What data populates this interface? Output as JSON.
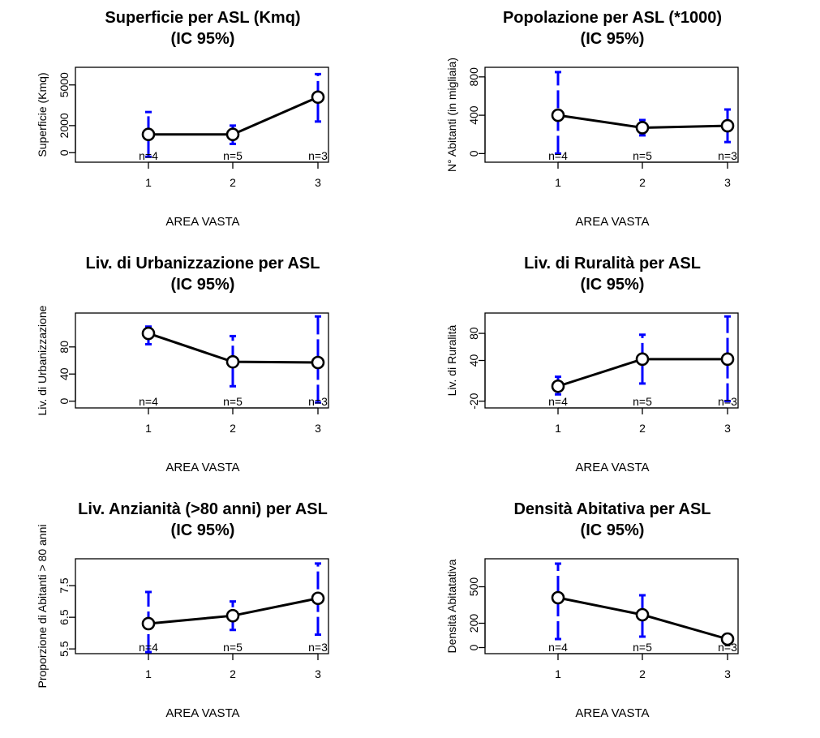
{
  "chart_data": [
    {
      "type": "line",
      "title": "Superficie per ASL (Kmq)",
      "subtitle": "(IC 95%)",
      "xlabel": "AREA VASTA",
      "ylabel": "Superficie (Kmq)",
      "categories": [
        "1",
        "2",
        "3"
      ],
      "values": [
        1350,
        1350,
        4100
      ],
      "ci_lower": [
        -300,
        650,
        2300
      ],
      "ci_upper": [
        3000,
        2000,
        5800
      ],
      "n_labels": [
        "n=4",
        "n=5",
        "n=3"
      ],
      "yticks": [
        0,
        2000,
        5000
      ],
      "ylim": [
        -700,
        6300
      ],
      "colors": {
        "line": "#000000",
        "error_bar": "#0000ff"
      }
    },
    {
      "type": "line",
      "title": "Popolazione per ASL (*1000)",
      "subtitle": "(IC 95%)",
      "xlabel": "AREA VASTA",
      "ylabel": "N° Abitanti (in migliaia)",
      "categories": [
        "1",
        "2",
        "3"
      ],
      "values": [
        400,
        270,
        290
      ],
      "ci_lower": [
        0,
        190,
        120
      ],
      "ci_upper": [
        850,
        350,
        460
      ],
      "n_labels": [
        "n=4",
        "n=5",
        "n=3"
      ],
      "yticks": [
        0,
        400,
        800
      ],
      "ylim": [
        -90,
        900
      ],
      "colors": {
        "line": "#000000",
        "error_bar": "#0000ff"
      }
    },
    {
      "type": "line",
      "title": "Liv. di Urbanizzazione per ASL",
      "subtitle": "(IC 95%)",
      "xlabel": "AREA VASTA",
      "ylabel": "Liv. di Urbanizzazione",
      "categories": [
        "1",
        "2",
        "3"
      ],
      "values": [
        100,
        58,
        57
      ],
      "ci_lower": [
        84,
        22,
        -2
      ],
      "ci_upper": [
        110,
        96,
        125
      ],
      "n_labels": [
        "n=4",
        "n=5",
        "n=3"
      ],
      "yticks": [
        0,
        40,
        80
      ],
      "ylim": [
        -10,
        130
      ],
      "colors": {
        "line": "#000000",
        "error_bar": "#0000ff"
      }
    },
    {
      "type": "line",
      "title": "Liv. di Ruralità per ASL",
      "subtitle": "(IC 95%)",
      "xlabel": "AREA VASTA",
      "ylabel": "Liv. di Ruralità",
      "categories": [
        "1",
        "2",
        "3"
      ],
      "values": [
        2,
        42,
        42
      ],
      "ci_lower": [
        -10,
        6,
        -20
      ],
      "ci_upper": [
        16,
        78,
        105
      ],
      "n_labels": [
        "n=4",
        "n=5",
        "n=3"
      ],
      "yticks": [
        -20,
        40,
        80
      ],
      "ylim": [
        -30,
        110
      ],
      "colors": {
        "line": "#000000",
        "error_bar": "#0000ff"
      }
    },
    {
      "type": "line",
      "title": "Liv. Anzianità (>80 anni) per ASL",
      "subtitle": "(IC 95%)",
      "xlabel": "AREA VASTA",
      "ylabel": "Proporzione di Abitanti > 80 anni",
      "categories": [
        "1",
        "2",
        "3"
      ],
      "values": [
        6.3,
        6.55,
        7.1
      ],
      "ci_lower": [
        5.4,
        6.1,
        5.95
      ],
      "ci_upper": [
        7.3,
        7.0,
        8.2
      ],
      "n_labels": [
        "n=4",
        "n=5",
        "n=3"
      ],
      "yticks": [
        5.5,
        6.5,
        7.5
      ],
      "ytick_labels": [
        "5.5",
        "6.5",
        "7.5"
      ],
      "ylim": [
        5.35,
        8.35
      ],
      "colors": {
        "line": "#000000",
        "error_bar": "#0000ff"
      }
    },
    {
      "type": "line",
      "title": "Densità Abitativa per ASL",
      "subtitle": "(IC 95%)",
      "xlabel": "AREA VASTA",
      "ylabel": "Densità Abitatativa",
      "categories": [
        "1",
        "2",
        "3"
      ],
      "values": [
        410,
        270,
        70
      ],
      "ci_lower": [
        70,
        90,
        30
      ],
      "ci_upper": [
        690,
        430,
        110
      ],
      "n_labels": [
        "n=4",
        "n=5",
        "n=3"
      ],
      "yticks": [
        0,
        200,
        500
      ],
      "ylim": [
        -50,
        730
      ],
      "colors": {
        "line": "#000000",
        "error_bar": "#0000ff"
      }
    }
  ]
}
